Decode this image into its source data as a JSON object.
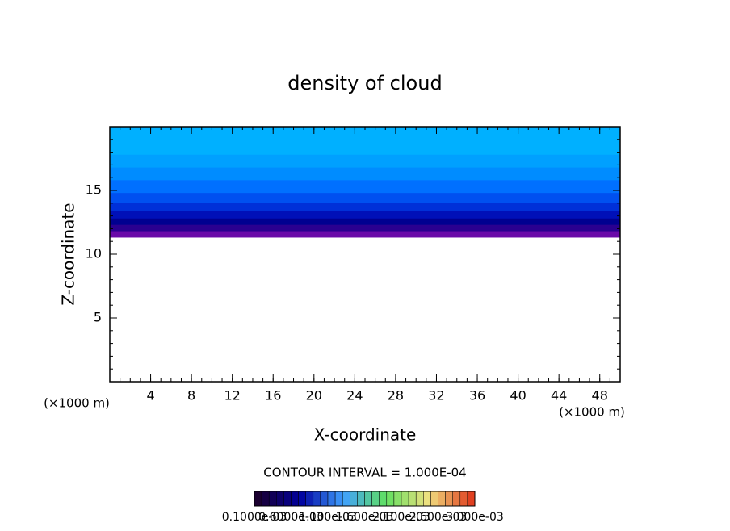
{
  "chart_data": {
    "type": "contour",
    "title": "density of cloud",
    "xlabel": "X-coordinate",
    "ylabel": "Z-coordinate",
    "xunit": "(×1000 m)",
    "yunit": "(×1000 m)",
    "xlim": [
      0,
      50
    ],
    "ylim": [
      0,
      20
    ],
    "xticks": [
      4,
      8,
      12,
      16,
      20,
      24,
      28,
      32,
      36,
      40,
      44,
      48
    ],
    "yticks": [
      5,
      10,
      15
    ],
    "bands": [
      {
        "z": 11.3,
        "color": "#6a0aa8"
      },
      {
        "z": 11.8,
        "color": "#2a0090"
      },
      {
        "z": 12.3,
        "color": "#000090"
      },
      {
        "z": 12.8,
        "color": "#0010b8"
      },
      {
        "z": 13.4,
        "color": "#0030d8"
      },
      {
        "z": 14.0,
        "color": "#0050f0"
      },
      {
        "z": 14.8,
        "color": "#0070ff"
      },
      {
        "z": 15.8,
        "color": "#008cff"
      },
      {
        "z": 16.8,
        "color": "#00a0ff"
      },
      {
        "z": 17.8,
        "color": "#00b0ff"
      }
    ],
    "contour_interval": "CONTOUR INTERVAL = 1.000E-04",
    "colorbar_stops": [
      "#1a0030",
      "#0000a0",
      "#40a0ff",
      "#60e060",
      "#f0e080",
      "#e04020"
    ],
    "colorbar_labels": [
      "0.1000e-03",
      "0.6000e-03",
      "1.100e-03",
      "1.600e-03",
      "2.100e-03",
      "2.600e-03",
      "3.000e-03"
    ]
  }
}
